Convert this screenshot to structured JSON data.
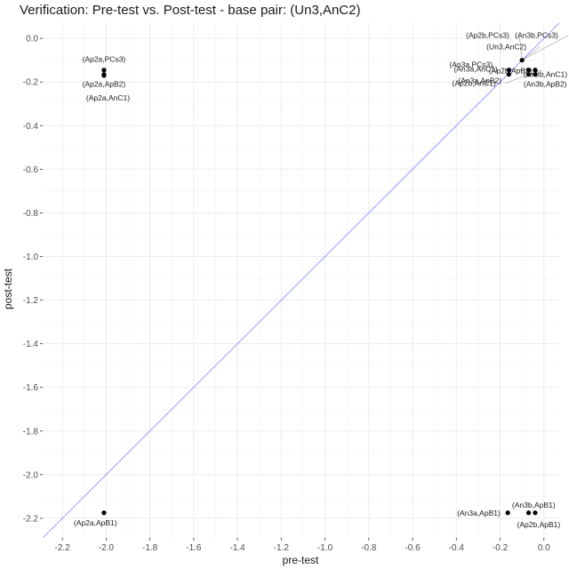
{
  "chart_data": {
    "type": "scatter",
    "title": "Verification: Pre-test vs. Post-test - base pair: (Un3,AnC2)",
    "xlabel": "pre-test",
    "ylabel": "post-test",
    "xlim": [
      -2.29,
      0.07
    ],
    "ylim": [
      -2.29,
      0.07
    ],
    "x_ticks": [
      "-2.2",
      "-2.0",
      "-1.8",
      "-1.6",
      "-1.4",
      "-1.2",
      "-1.0",
      "-0.8",
      "-0.6",
      "-0.4",
      "-0.2",
      "0.0"
    ],
    "y_ticks": [
      "0.0",
      "-0.2",
      "-0.4",
      "-0.6",
      "-0.8",
      "-1.0",
      "-1.2",
      "-1.4",
      "-1.6",
      "-1.8",
      "-2.0",
      "-2.2"
    ],
    "grid": true,
    "reference_line": "y = x",
    "colors": {
      "points": "#000000",
      "reference_line": "#8080ff",
      "grid": "#ebebeb"
    },
    "points": [
      {
        "label": "(Ap2a,PCs3)",
        "x": -2.01,
        "y": -0.145
      },
      {
        "label": "(Ap2a,ApB2)",
        "x": -2.01,
        "y": -0.165
      },
      {
        "label": "(Ap2a,AnC1)",
        "x": -2.01,
        "y": -0.17
      },
      {
        "label": "(Ap2b,PCs3)",
        "x": -0.1,
        "y": -0.1
      },
      {
        "label": "(Un3,AnC2)",
        "x": -0.1,
        "y": -0.1
      },
      {
        "label": "(An3b,PCs3)",
        "x": -0.1,
        "y": -0.1
      },
      {
        "label": "(An3a,PCs3)",
        "x": -0.16,
        "y": -0.145
      },
      {
        "label": "(An3a,ApB2)",
        "x": -0.16,
        "y": -0.165
      },
      {
        "label": "(An3a,AnC1)",
        "x": -0.07,
        "y": -0.145
      },
      {
        "label": "(Ap2b,AnC1)",
        "x": -0.07,
        "y": -0.165
      },
      {
        "label": "(Ap2b,ApB2)",
        "x": -0.04,
        "y": -0.145
      },
      {
        "label": "(An3b,AnC1)",
        "x": -0.04,
        "y": -0.165
      },
      {
        "label": "(An3b,ApB2)",
        "x": -0.04,
        "y": -0.165
      },
      {
        "label": "(Ap2a,ApB1)",
        "x": -2.01,
        "y": -2.175
      },
      {
        "label": "(An3a,ApB1)",
        "x": -0.165,
        "y": -2.175
      },
      {
        "label": "(Ap2b,ApB1)",
        "x": -0.07,
        "y": -2.175
      },
      {
        "label": "(An3b,ApB1)",
        "x": -0.04,
        "y": -2.175
      }
    ]
  }
}
